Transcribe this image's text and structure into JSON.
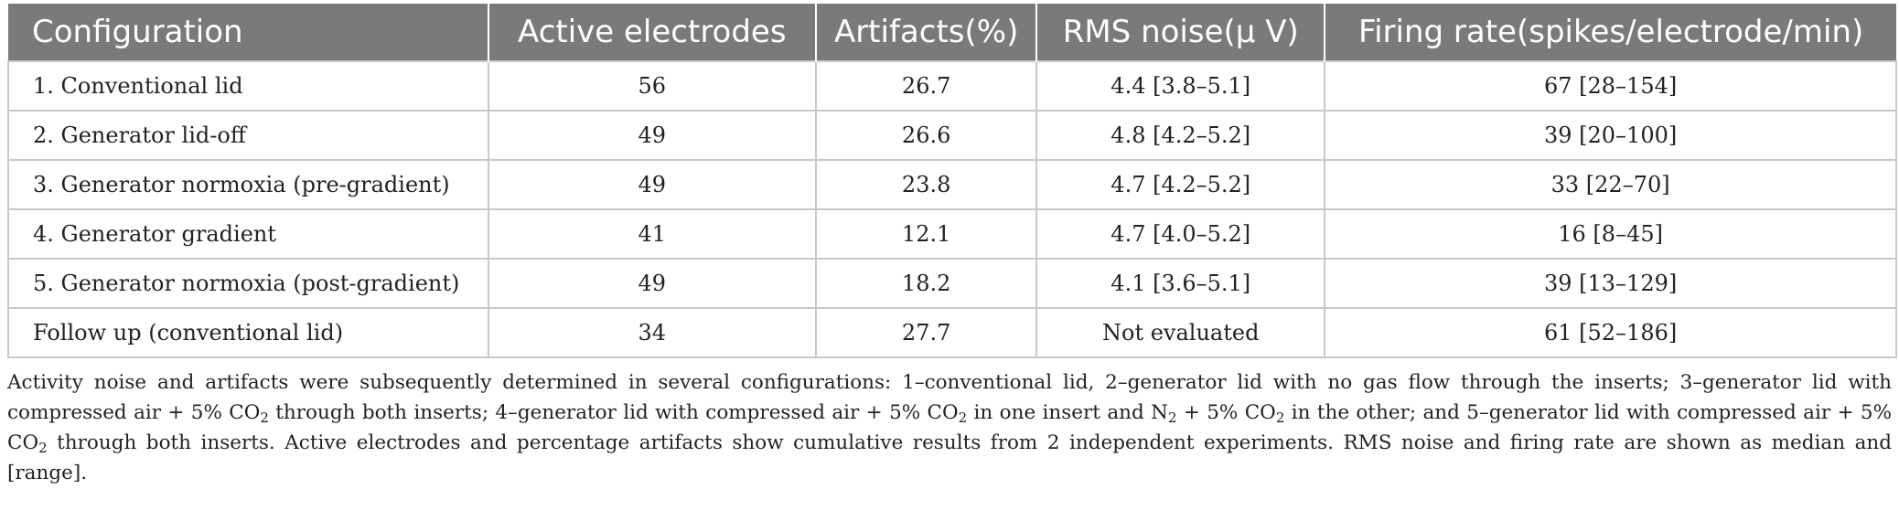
{
  "table": {
    "headers": [
      "Configuration",
      "Active electrodes",
      "Artifacts(%)",
      "RMS noise(μ V)",
      "Firing rate(spikes/electrode/min)"
    ],
    "rows": [
      [
        "1. Conventional lid",
        "56",
        "26.7",
        "4.4 [3.8–5.1]",
        "67 [28–154]"
      ],
      [
        "2. Generator lid-off",
        "49",
        "26.6",
        "4.8 [4.2–5.2]",
        "39 [20–100]"
      ],
      [
        "3. Generator normoxia (pre-gradient)",
        "49",
        "23.8",
        "4.7 [4.2–5.2]",
        "33 [22–70]"
      ],
      [
        "4. Generator gradient",
        "41",
        "12.1",
        "4.7 [4.0–5.2]",
        "16 [8–45]"
      ],
      [
        "5. Generator normoxia (post-gradient)",
        "49",
        "18.2",
        "4.1 [3.6–5.1]",
        "39 [13–129]"
      ],
      [
        "Follow up (conventional lid)",
        "34",
        "27.7",
        "Not evaluated",
        "61 [52–186]"
      ]
    ]
  },
  "caption": {
    "t1": "Activity noise and artifacts were subsequently determined in several configurations: 1–conventional lid, 2–generator lid with no gas flow through the inserts; 3–generator lid with compressed air + 5% CO",
    "s1": "2",
    "t2": " through both inserts; 4–generator lid with compressed air + 5% CO",
    "s2": "2",
    "t3": " in one insert and N",
    "s3": "2",
    "t4": " + 5% CO",
    "s4": "2",
    "t5": " in the other; and 5–generator lid with compressed air + 5% CO",
    "s5": "2",
    "t6": " through both inserts. Active electrodes and percentage artifacts show cumulative results from 2 independent experiments. RMS noise and firing rate are shown as median and [range]."
  }
}
